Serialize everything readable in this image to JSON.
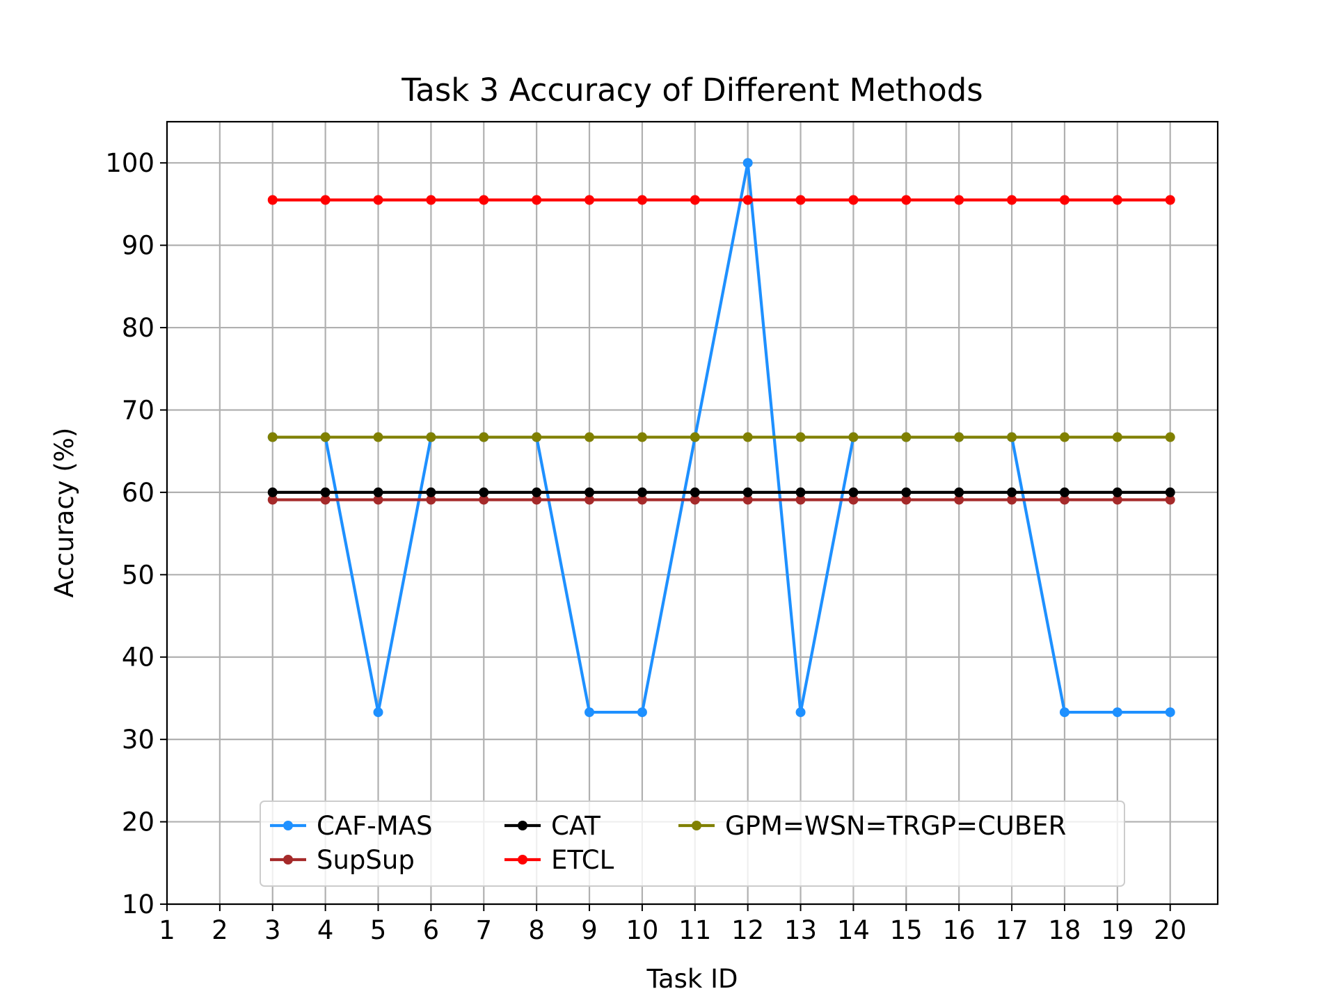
{
  "chart_data": {
    "type": "line",
    "title": "Task 3 Accuracy of Different Methods",
    "xlabel": "Task ID",
    "ylabel": "Accuracy (%)",
    "xlim": [
      1,
      20
    ],
    "ylim": [
      10,
      105
    ],
    "xticks": [
      1,
      2,
      3,
      4,
      5,
      6,
      7,
      8,
      9,
      10,
      11,
      12,
      13,
      14,
      15,
      16,
      17,
      18,
      19,
      20
    ],
    "yticks": [
      10,
      20,
      30,
      40,
      50,
      60,
      70,
      80,
      90,
      100
    ],
    "grid": true,
    "legend_position": "lower-center",
    "x": [
      3,
      4,
      5,
      6,
      7,
      8,
      9,
      10,
      11,
      12,
      13,
      14,
      15,
      16,
      17,
      18,
      19,
      20
    ],
    "series": [
      {
        "name": "CAF-MAS",
        "color": "#1e90ff",
        "values": [
          66.7,
          66.7,
          33.3,
          66.7,
          66.7,
          66.7,
          33.3,
          33.3,
          66.7,
          100,
          33.3,
          66.7,
          66.7,
          66.7,
          66.7,
          33.3,
          33.3,
          33.3
        ]
      },
      {
        "name": "SupSup",
        "color": "#a52a2a",
        "values": [
          59.1,
          59.1,
          59.1,
          59.1,
          59.1,
          59.1,
          59.1,
          59.1,
          59.1,
          59.1,
          59.1,
          59.1,
          59.1,
          59.1,
          59.1,
          59.1,
          59.1,
          59.1
        ]
      },
      {
        "name": "CAT",
        "color": "#000000",
        "values": [
          60,
          60,
          60,
          60,
          60,
          60,
          60,
          60,
          60,
          60,
          60,
          60,
          60,
          60,
          60,
          60,
          60,
          60
        ]
      },
      {
        "name": "ETCL",
        "color": "#ff0000",
        "values": [
          95.5,
          95.5,
          95.5,
          95.5,
          95.5,
          95.5,
          95.5,
          95.5,
          95.5,
          95.5,
          95.5,
          95.5,
          95.5,
          95.5,
          95.5,
          95.5,
          95.5,
          95.5
        ]
      },
      {
        "name": "GPM=WSN=TRGP=CUBER",
        "color": "#808000",
        "values": [
          66.7,
          66.7,
          66.7,
          66.7,
          66.7,
          66.7,
          66.7,
          66.7,
          66.7,
          66.7,
          66.7,
          66.7,
          66.7,
          66.7,
          66.7,
          66.7,
          66.7,
          66.7
        ]
      }
    ],
    "series_draw_order": [
      "CAF-MAS",
      "SupSup",
      "CAT",
      "ETCL",
      "GPM=WSN=TRGP=CUBER"
    ]
  }
}
